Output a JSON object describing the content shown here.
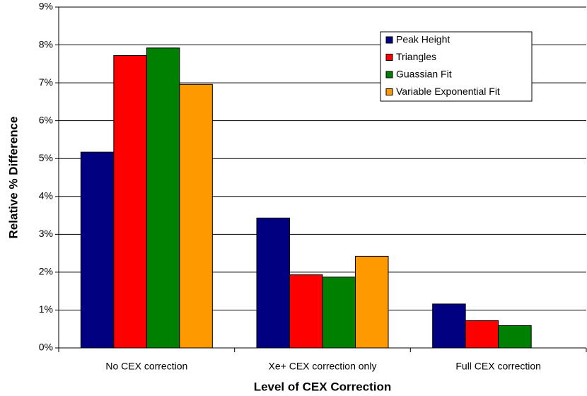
{
  "chart_data": {
    "type": "bar",
    "x_label": "Level of CEX Correction",
    "y_label": "Relative % Difference",
    "categories": [
      "No CEX correction",
      "Xe+ CEX correction only",
      "Full CEX correction"
    ],
    "series": [
      {
        "name": "Peak Height",
        "color": "#000080",
        "values": [
          5.17,
          3.43,
          1.16
        ]
      },
      {
        "name": "Triangles",
        "color": "#ff0000",
        "values": [
          7.72,
          1.93,
          0.72
        ]
      },
      {
        "name": "Guassian Fit",
        "color": "#008000",
        "values": [
          7.92,
          1.87,
          0.59
        ]
      },
      {
        "name": "Variable Exponential Fit",
        "color": "#ff9900",
        "values": [
          6.96,
          2.42,
          null
        ]
      }
    ],
    "ylim": [
      0,
      9
    ],
    "yticks": [
      {
        "value": 0,
        "label": "0%"
      },
      {
        "value": 1,
        "label": "1%"
      },
      {
        "value": 2,
        "label": "2%"
      },
      {
        "value": 3,
        "label": "3%"
      },
      {
        "value": 4,
        "label": "4%"
      },
      {
        "value": 5,
        "label": "5%"
      },
      {
        "value": 6,
        "label": "6%"
      },
      {
        "value": 7,
        "label": "7%"
      },
      {
        "value": 8,
        "label": "8%"
      },
      {
        "value": 9,
        "label": "9%"
      }
    ],
    "grid": true,
    "legend": "upper-right"
  }
}
